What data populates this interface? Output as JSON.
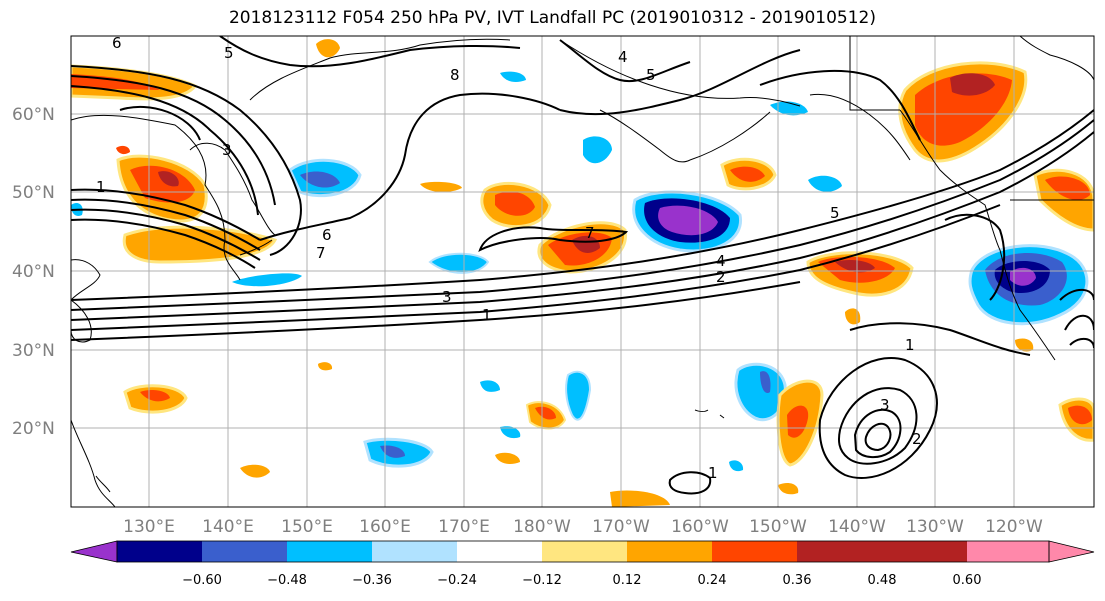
{
  "title": "2018123112 F054 250 hPa PV, IVT Landfall PC (2019010312 - 2019010512)",
  "lat_labels": [
    "60°N",
    "50°N",
    "40°N",
    "30°N",
    "20°N"
  ],
  "lon_labels": [
    "130°E",
    "140°E",
    "150°E",
    "160°E",
    "170°E",
    "180°W",
    "170°W",
    "160°W",
    "150°W",
    "140°W",
    "130°W",
    "120°W"
  ],
  "colorbar": {
    "ticks": [
      "−0.60",
      "−0.48",
      "−0.36",
      "−0.24",
      "−0.12",
      "0.12",
      "0.24",
      "0.36",
      "0.48",
      "0.60"
    ],
    "colors": [
      "#9932CC",
      "#00008B",
      "#3A5FCD",
      "#00BFFF",
      "#B0E2FF",
      "#FFFFFF",
      "#FFE680",
      "#FFA500",
      "#FF4500",
      "#B22222",
      "#FF88AA"
    ]
  },
  "contour_labels": [
    {
      "text": "6"
    },
    {
      "text": "5"
    },
    {
      "text": "4"
    },
    {
      "text": "5"
    },
    {
      "text": "8"
    },
    {
      "text": "3"
    },
    {
      "text": "1"
    },
    {
      "text": "6"
    },
    {
      "text": "7"
    },
    {
      "text": "7"
    },
    {
      "text": "5"
    },
    {
      "text": "4"
    },
    {
      "text": "2"
    },
    {
      "text": "3"
    },
    {
      "text": "1"
    },
    {
      "text": "1"
    },
    {
      "text": "3"
    },
    {
      "text": "2"
    },
    {
      "text": "1"
    }
  ]
}
